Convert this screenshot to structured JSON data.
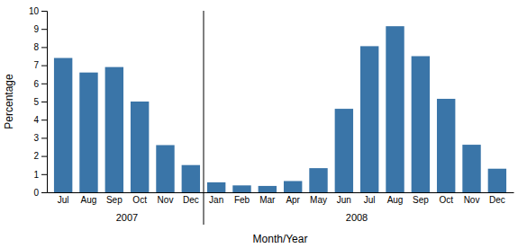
{
  "chart_data": {
    "type": "bar",
    "categories": [
      "Jul",
      "Aug",
      "Sep",
      "Oct",
      "Nov",
      "Dec",
      "Jan",
      "Feb",
      "Mar",
      "Apr",
      "May",
      "Jun",
      "Jul",
      "Aug",
      "Sep",
      "Oct",
      "Nov",
      "Dec"
    ],
    "values": [
      7.4,
      6.6,
      6.9,
      5.0,
      2.6,
      1.5,
      0.55,
      0.38,
      0.35,
      0.62,
      1.33,
      4.6,
      8.05,
      9.15,
      7.5,
      5.15,
      2.62,
      1.3
    ],
    "color": "#3A75A8",
    "y_label": "Percentage",
    "x_label": "Month/Year",
    "ylim": [
      0,
      10
    ],
    "yticks": [
      0,
      1,
      2,
      3,
      4,
      5,
      6,
      7,
      8,
      9,
      10
    ],
    "grid": false,
    "annotations": [
      {
        "text": "2007",
        "x": 2.5
      },
      {
        "text": "2008",
        "x": 11.5
      }
    ]
  }
}
